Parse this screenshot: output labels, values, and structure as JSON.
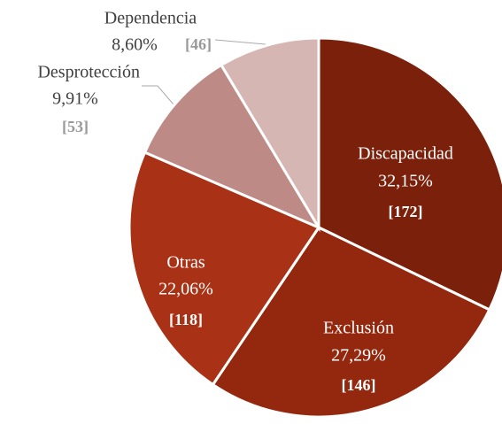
{
  "chart_data": {
    "type": "pie",
    "categories": [
      "Discapacidad",
      "Exclusión",
      "Otras",
      "Desprotección",
      "Dependencia"
    ],
    "values": [
      32.15,
      27.29,
      22.06,
      9.91,
      8.6
    ],
    "value_labels": [
      "32,15%",
      "27,29%",
      "22,06%",
      "9,91%",
      "8,60%"
    ],
    "counts": [
      172,
      146,
      118,
      53,
      46
    ],
    "count_labels": [
      "[172]",
      "[146]",
      "[118]",
      "[53]",
      "[46]"
    ],
    "colors": [
      "#7b200b",
      "#93280f",
      "#a83116",
      "#be8a85",
      "#d5b6b3"
    ]
  }
}
